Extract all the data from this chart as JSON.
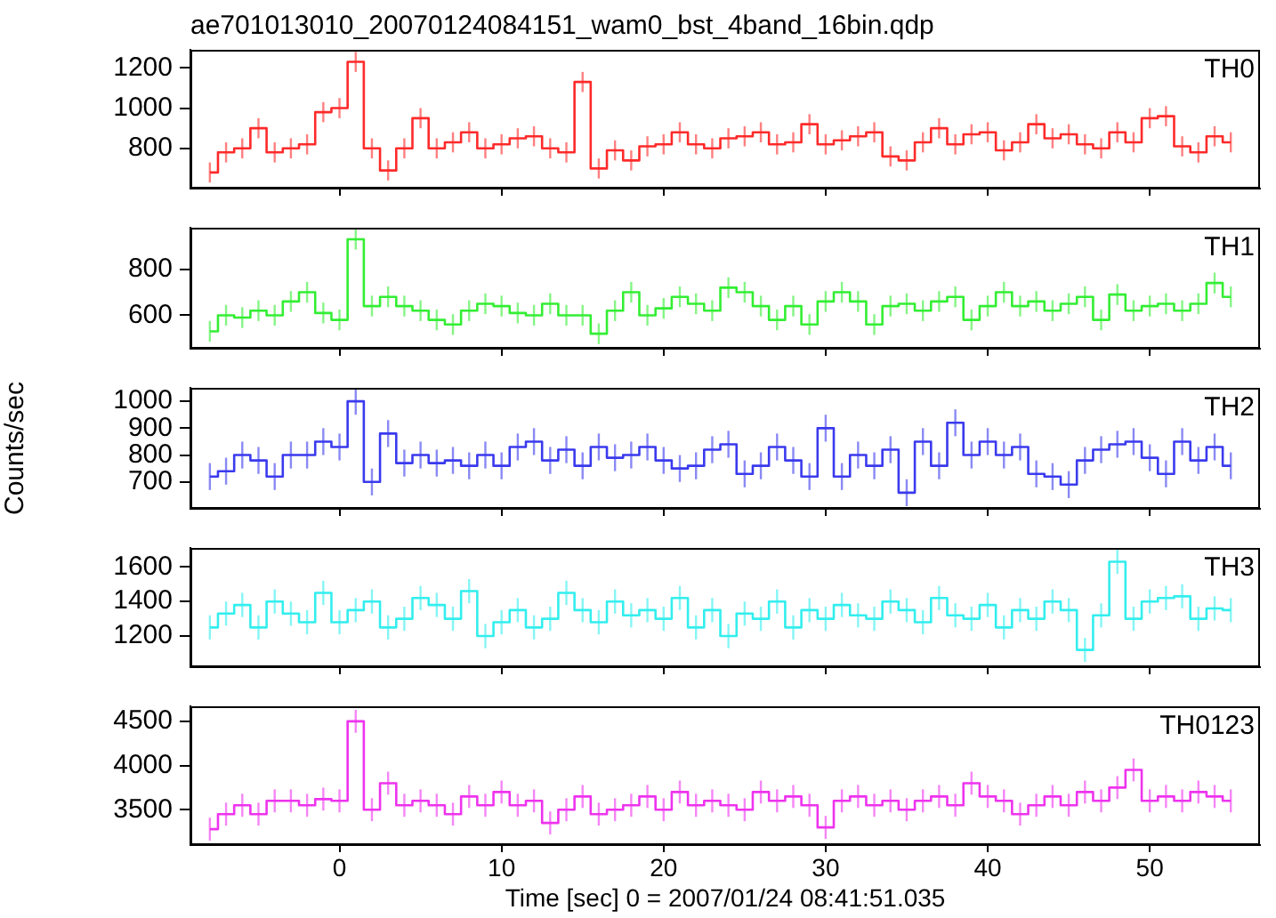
{
  "chart_data": [
    {
      "type": "step",
      "title": "ae701013010_20070124084151_wam0_bst_4band_16bin.qdp",
      "x": [
        -8,
        -7,
        -6,
        -5,
        -4,
        -3,
        -2,
        -1,
        0,
        1,
        2,
        3,
        4,
        5,
        6,
        7,
        8,
        9,
        10,
        11,
        12,
        13,
        14,
        15,
        16,
        17,
        18,
        19,
        20,
        21,
        22,
        23,
        24,
        25,
        26,
        27,
        28,
        29,
        30,
        31,
        32,
        33,
        34,
        35,
        36,
        37,
        38,
        39,
        40,
        41,
        42,
        43,
        44,
        45,
        46,
        47,
        48,
        49,
        50,
        51,
        52,
        53,
        54,
        55
      ],
      "xlim": [
        -9.2,
        56.8
      ],
      "xticks": [
        0,
        10,
        20,
        30,
        40,
        50
      ],
      "ylim": [
        600,
        1290
      ],
      "yticks": [
        800,
        1000,
        1200
      ],
      "tick_labels": "y",
      "series": [
        {
          "name": "TH0",
          "color": "#ff2a2a",
          "values": [
            680,
            780,
            800,
            900,
            780,
            800,
            820,
            980,
            1000,
            1230,
            800,
            690,
            800,
            950,
            800,
            830,
            880,
            800,
            820,
            850,
            860,
            800,
            780,
            1130,
            700,
            790,
            740,
            810,
            820,
            880,
            820,
            800,
            850,
            860,
            880,
            820,
            830,
            920,
            820,
            840,
            860,
            880,
            760,
            740,
            830,
            900,
            820,
            870,
            880,
            790,
            830,
            920,
            850,
            870,
            820,
            800,
            880,
            830,
            950,
            960,
            810,
            780,
            860,
            830
          ],
          "errors": [
            50,
            50,
            50,
            50,
            50,
            50,
            50,
            50,
            50,
            50,
            50,
            50,
            50,
            50,
            50,
            50,
            50,
            50,
            50,
            50,
            50,
            50,
            50,
            50,
            50,
            50,
            50,
            50,
            50,
            50,
            50,
            50,
            50,
            50,
            50,
            50,
            50,
            50,
            50,
            50,
            50,
            50,
            50,
            50,
            50,
            50,
            50,
            50,
            50,
            50,
            50,
            50,
            50,
            50,
            50,
            50,
            50,
            50,
            50,
            50,
            50,
            50,
            50,
            50
          ]
        }
      ]
    },
    {
      "type": "step",
      "x": [
        -8,
        -7,
        -6,
        -5,
        -4,
        -3,
        -2,
        -1,
        0,
        1,
        2,
        3,
        4,
        5,
        6,
        7,
        8,
        9,
        10,
        11,
        12,
        13,
        14,
        15,
        16,
        17,
        18,
        19,
        20,
        21,
        22,
        23,
        24,
        25,
        26,
        27,
        28,
        29,
        30,
        31,
        32,
        33,
        34,
        35,
        36,
        37,
        38,
        39,
        40,
        41,
        42,
        43,
        44,
        45,
        46,
        47,
        48,
        49,
        50,
        51,
        52,
        53,
        54,
        55
      ],
      "xlim": [
        -9.2,
        56.8
      ],
      "xticks": [
        0,
        10,
        20,
        30,
        40,
        50
      ],
      "ylim": [
        455,
        980
      ],
      "yticks": [
        600,
        800
      ],
      "tick_labels": "y",
      "series": [
        {
          "name": "TH1",
          "color": "#33ee33",
          "values": [
            530,
            600,
            590,
            620,
            600,
            660,
            700,
            610,
            580,
            930,
            640,
            680,
            640,
            620,
            580,
            560,
            620,
            650,
            640,
            610,
            600,
            650,
            600,
            600,
            520,
            620,
            700,
            600,
            630,
            680,
            650,
            620,
            720,
            700,
            640,
            580,
            640,
            560,
            660,
            700,
            660,
            560,
            640,
            650,
            620,
            660,
            680,
            580,
            640,
            700,
            640,
            660,
            620,
            650,
            680,
            580,
            690,
            620,
            640,
            650,
            620,
            650,
            740,
            680
          ],
          "errors": [
            45,
            45,
            45,
            45,
            45,
            45,
            45,
            45,
            45,
            45,
            45,
            45,
            45,
            45,
            45,
            45,
            45,
            45,
            45,
            45,
            45,
            45,
            45,
            45,
            45,
            45,
            45,
            45,
            45,
            45,
            45,
            45,
            45,
            45,
            45,
            45,
            45,
            45,
            45,
            45,
            45,
            45,
            45,
            45,
            45,
            45,
            45,
            45,
            45,
            45,
            45,
            45,
            45,
            45,
            45,
            45,
            45,
            45,
            45,
            45,
            45,
            45,
            45,
            45
          ]
        }
      ]
    },
    {
      "type": "step",
      "ylabel": "Counts/sec",
      "x": [
        -8,
        -7,
        -6,
        -5,
        -4,
        -3,
        -2,
        -1,
        0,
        1,
        2,
        3,
        4,
        5,
        6,
        7,
        8,
        9,
        10,
        11,
        12,
        13,
        14,
        15,
        16,
        17,
        18,
        19,
        20,
        21,
        22,
        23,
        24,
        25,
        26,
        27,
        28,
        29,
        30,
        31,
        32,
        33,
        34,
        35,
        36,
        37,
        38,
        39,
        40,
        41,
        42,
        43,
        44,
        45,
        46,
        47,
        48,
        49,
        50,
        51,
        52,
        53,
        54,
        55
      ],
      "xlim": [
        -9.2,
        56.8
      ],
      "xticks": [
        0,
        10,
        20,
        30,
        40,
        50
      ],
      "ylim": [
        600,
        1050
      ],
      "yticks": [
        700,
        800,
        900,
        1000
      ],
      "tick_labels": "y",
      "series": [
        {
          "name": "TH2",
          "color": "#3a3aee",
          "values": [
            720,
            740,
            800,
            780,
            720,
            800,
            800,
            850,
            830,
            1000,
            700,
            880,
            770,
            800,
            770,
            780,
            760,
            800,
            760,
            830,
            850,
            780,
            820,
            760,
            830,
            790,
            800,
            830,
            780,
            750,
            760,
            820,
            840,
            730,
            760,
            830,
            780,
            720,
            900,
            720,
            800,
            760,
            820,
            660,
            850,
            760,
            920,
            800,
            850,
            800,
            830,
            730,
            720,
            690,
            780,
            820,
            840,
            850,
            790,
            730,
            850,
            780,
            830,
            760
          ],
          "errors": [
            50,
            50,
            50,
            50,
            50,
            50,
            50,
            50,
            50,
            50,
            50,
            50,
            50,
            50,
            50,
            50,
            50,
            50,
            50,
            50,
            50,
            50,
            50,
            50,
            50,
            50,
            50,
            50,
            50,
            50,
            50,
            50,
            50,
            50,
            50,
            50,
            50,
            50,
            50,
            50,
            50,
            50,
            50,
            50,
            50,
            50,
            50,
            50,
            50,
            50,
            50,
            50,
            50,
            50,
            50,
            50,
            50,
            50,
            50,
            50,
            50,
            50,
            50,
            50
          ]
        }
      ]
    },
    {
      "type": "step",
      "x": [
        -8,
        -7,
        -6,
        -5,
        -4,
        -3,
        -2,
        -1,
        0,
        1,
        2,
        3,
        4,
        5,
        6,
        7,
        8,
        9,
        10,
        11,
        12,
        13,
        14,
        15,
        16,
        17,
        18,
        19,
        20,
        21,
        22,
        23,
        24,
        25,
        26,
        27,
        28,
        29,
        30,
        31,
        32,
        33,
        34,
        35,
        36,
        37,
        38,
        39,
        40,
        41,
        42,
        43,
        44,
        45,
        46,
        47,
        48,
        49,
        50,
        51,
        52,
        53,
        54,
        55
      ],
      "xlim": [
        -9.2,
        56.8
      ],
      "xticks": [
        0,
        10,
        20,
        30,
        40,
        50
      ],
      "ylim": [
        1020,
        1710
      ],
      "yticks": [
        1200,
        1400,
        1600
      ],
      "tick_labels": "y",
      "series": [
        {
          "name": "TH3",
          "color": "#33eeee",
          "values": [
            1250,
            1330,
            1380,
            1250,
            1400,
            1330,
            1280,
            1450,
            1280,
            1350,
            1400,
            1250,
            1300,
            1420,
            1380,
            1300,
            1460,
            1200,
            1280,
            1350,
            1250,
            1300,
            1450,
            1350,
            1280,
            1400,
            1320,
            1350,
            1300,
            1420,
            1250,
            1350,
            1200,
            1330,
            1300,
            1400,
            1250,
            1350,
            1300,
            1380,
            1320,
            1300,
            1400,
            1350,
            1280,
            1420,
            1320,
            1300,
            1380,
            1250,
            1350,
            1300,
            1400,
            1350,
            1120,
            1320,
            1630,
            1300,
            1400,
            1420,
            1430,
            1300,
            1360,
            1350
          ],
          "errors": [
            70,
            70,
            70,
            70,
            70,
            70,
            70,
            70,
            70,
            70,
            70,
            70,
            70,
            70,
            70,
            70,
            70,
            70,
            70,
            70,
            70,
            70,
            70,
            70,
            70,
            70,
            70,
            70,
            70,
            70,
            70,
            70,
            70,
            70,
            70,
            70,
            70,
            70,
            70,
            70,
            70,
            70,
            70,
            70,
            70,
            70,
            70,
            70,
            70,
            70,
            70,
            70,
            70,
            70,
            70,
            70,
            70,
            70,
            70,
            70,
            70,
            70,
            70,
            70
          ]
        }
      ]
    },
    {
      "type": "step",
      "xlabel": "Time [sec] 0 = 2007/01/24 08:41:51.035",
      "x": [
        -8,
        -7,
        -6,
        -5,
        -4,
        -3,
        -2,
        -1,
        0,
        1,
        2,
        3,
        4,
        5,
        6,
        7,
        8,
        9,
        10,
        11,
        12,
        13,
        14,
        15,
        16,
        17,
        18,
        19,
        20,
        21,
        22,
        23,
        24,
        25,
        26,
        27,
        28,
        29,
        30,
        31,
        32,
        33,
        34,
        35,
        36,
        37,
        38,
        39,
        40,
        41,
        42,
        43,
        44,
        45,
        46,
        47,
        48,
        49,
        50,
        51,
        52,
        53,
        54,
        55
      ],
      "xlim": [
        -9.2,
        56.8
      ],
      "xticks": [
        0,
        10,
        20,
        30,
        40,
        50
      ],
      "ylim": [
        3100,
        4670
      ],
      "yticks": [
        3500,
        4000,
        4500
      ],
      "series": [
        {
          "name": "TH0123",
          "color": "#ee33ee",
          "values": [
            3280,
            3450,
            3550,
            3450,
            3600,
            3600,
            3550,
            3620,
            3600,
            4500,
            3500,
            3800,
            3550,
            3600,
            3550,
            3450,
            3650,
            3550,
            3700,
            3550,
            3600,
            3350,
            3500,
            3650,
            3450,
            3500,
            3550,
            3650,
            3500,
            3700,
            3550,
            3600,
            3550,
            3500,
            3700,
            3600,
            3650,
            3550,
            3300,
            3600,
            3650,
            3550,
            3600,
            3500,
            3600,
            3650,
            3550,
            3800,
            3650,
            3600,
            3450,
            3550,
            3650,
            3550,
            3700,
            3600,
            3750,
            3950,
            3600,
            3650,
            3600,
            3700,
            3650,
            3600
          ],
          "errors": [
            130,
            130,
            130,
            130,
            130,
            130,
            130,
            130,
            130,
            130,
            130,
            130,
            130,
            130,
            130,
            130,
            130,
            130,
            130,
            130,
            130,
            130,
            130,
            130,
            130,
            130,
            130,
            130,
            130,
            130,
            130,
            130,
            130,
            130,
            130,
            130,
            130,
            130,
            130,
            130,
            130,
            130,
            130,
            130,
            130,
            130,
            130,
            130,
            130,
            130,
            130,
            130,
            130,
            130,
            130,
            130,
            130,
            130,
            130,
            130,
            130,
            130,
            130,
            130
          ]
        }
      ]
    }
  ]
}
